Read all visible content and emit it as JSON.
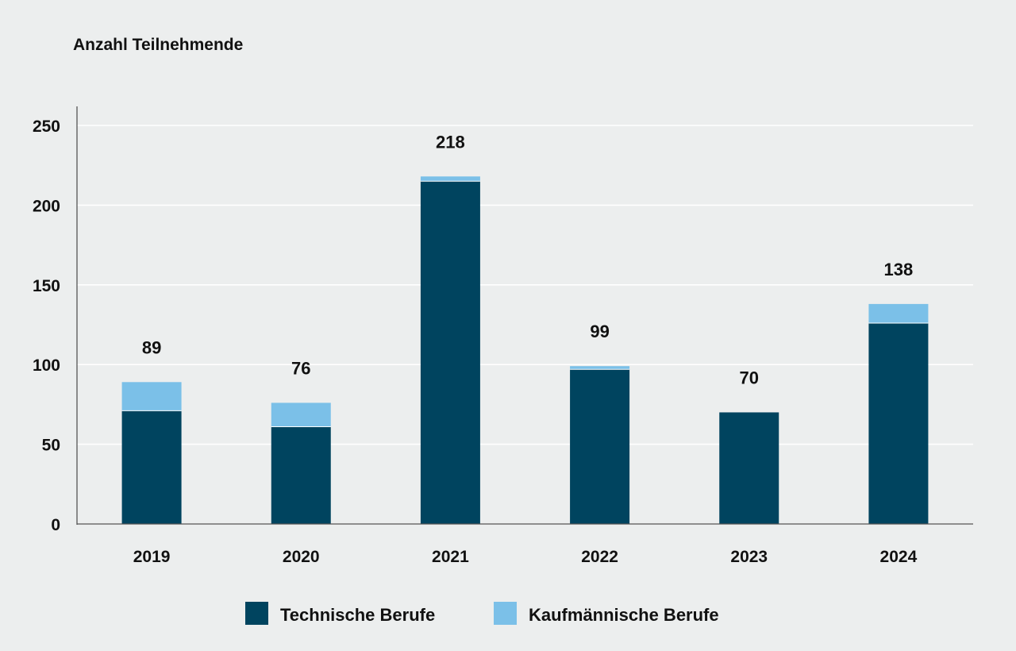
{
  "chart_data": {
    "type": "bar",
    "stacked": true,
    "ylabel": "Anzahl Teilnehmende",
    "ylim": [
      0,
      250
    ],
    "yticks": [
      0,
      50,
      100,
      150,
      200,
      250
    ],
    "grid": true,
    "legend_position": "bottom-center",
    "categories": [
      "2019",
      "2020",
      "2021",
      "2022",
      "2023",
      "2024"
    ],
    "series": [
      {
        "name": "Technische Berufe",
        "color": "#00445f",
        "values": [
          71,
          61,
          215,
          97,
          70,
          126
        ]
      },
      {
        "name": "Kaufmännische Berufe",
        "color": "#7bc0e8",
        "values": [
          18,
          15,
          3,
          2,
          0,
          12
        ]
      }
    ],
    "totals": [
      "89",
      "76",
      "218",
      "99",
      "70",
      "138"
    ]
  }
}
